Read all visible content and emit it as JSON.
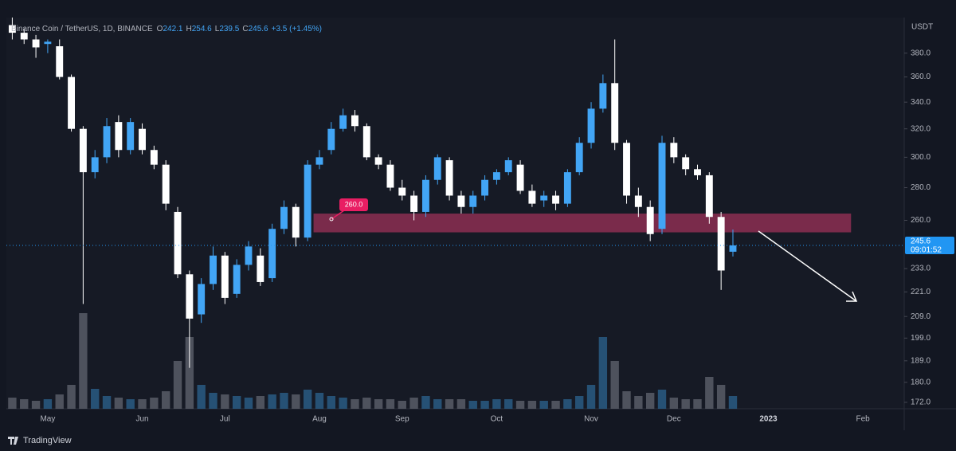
{
  "chart_data": {
    "type": "candlestick",
    "symbol": "Binance Coin / TetherUS, 1D, BINANCE",
    "ohlc_prefixes": [
      "O",
      "H",
      "L",
      "C"
    ],
    "change_label": "+3.5 (+1.45%)",
    "currency": "USDT",
    "countdown": "09:01:52",
    "annotation_label": "260.0",
    "zone": {
      "low": 253,
      "high": 264
    },
    "logo": "TradingView",
    "log_scale": true,
    "up_color": "#42a5f5",
    "down_color": "#ffffff",
    "zone_color": "#8c2f52",
    "categories": [
      null,
      null,
      null,
      "May",
      null,
      null,
      null,
      null,
      null,
      null,
      null,
      "Jun",
      null,
      null,
      null,
      null,
      null,
      null,
      "Jul",
      null,
      null,
      null,
      null,
      null,
      null,
      null,
      "Aug",
      null,
      null,
      null,
      null,
      null,
      null,
      "Sep",
      null,
      null,
      null,
      null,
      null,
      null,
      null,
      "Oct",
      null,
      null,
      null,
      null,
      null,
      null,
      null,
      "Nov",
      null,
      null,
      null,
      null,
      null,
      null,
      "Dec",
      null,
      null,
      null,
      null,
      null,
      null,
      null,
      "2023",
      null,
      null,
      null,
      null,
      null,
      null,
      null,
      "Feb",
      null,
      null,
      null
    ],
    "open": [
      405,
      398,
      392,
      388,
      386,
      360,
      320,
      290,
      300,
      325,
      305,
      320,
      305,
      295,
      265,
      230,
      210,
      225,
      240,
      220,
      235,
      240,
      228,
      255,
      268,
      250,
      295,
      305,
      320,
      330,
      322,
      300,
      295,
      280,
      275,
      265,
      285,
      298,
      275,
      268,
      275,
      285,
      290,
      295,
      278,
      272,
      275,
      270,
      290,
      310,
      335,
      355,
      310,
      275,
      268,
      255,
      310,
      300,
      292,
      288,
      262,
      242.1,
      null,
      null,
      null,
      null,
      null,
      null,
      null,
      null,
      null,
      null,
      null,
      null,
      null,
      null
    ],
    "high": [
      412,
      402,
      396,
      392,
      392,
      362,
      322,
      305,
      328,
      330,
      328,
      324,
      308,
      298,
      268,
      232,
      228,
      245,
      242,
      238,
      248,
      244,
      258,
      272,
      270,
      298,
      305,
      325,
      335,
      334,
      324,
      302,
      298,
      285,
      278,
      288,
      302,
      300,
      278,
      278,
      288,
      292,
      300,
      298,
      282,
      278,
      278,
      292,
      314,
      340,
      362,
      392,
      312,
      280,
      272,
      315,
      314,
      302,
      295,
      290,
      265,
      254.6,
      null,
      null,
      null,
      null,
      null,
      null,
      null,
      null,
      null,
      null,
      null,
      null,
      null,
      null
    ],
    "low": [
      392,
      388,
      376,
      380,
      358,
      318,
      215,
      286,
      296,
      300,
      302,
      302,
      292,
      266,
      228,
      186,
      206,
      222,
      215,
      218,
      232,
      224,
      226,
      252,
      245,
      248,
      292,
      302,
      318,
      318,
      298,
      292,
      278,
      272,
      260,
      262,
      282,
      272,
      264,
      264,
      272,
      282,
      288,
      276,
      268,
      268,
      266,
      268,
      288,
      306,
      332,
      305,
      270,
      262,
      248,
      252,
      296,
      288,
      285,
      258,
      222,
      239.5,
      null,
      null,
      null,
      null,
      null,
      null,
      null,
      null,
      null,
      null,
      null,
      null,
      null,
      null
    ],
    "close": [
      398,
      392,
      385,
      390,
      360,
      320,
      290,
      300,
      322,
      305,
      325,
      305,
      295,
      270,
      230,
      208,
      225,
      240,
      218,
      235,
      245,
      226,
      255,
      268,
      250,
      295,
      300,
      320,
      330,
      322,
      300,
      295,
      280,
      275,
      265,
      285,
      300,
      275,
      268,
      275,
      285,
      290,
      298,
      278,
      270,
      275,
      270,
      290,
      310,
      335,
      355,
      310,
      275,
      268,
      252,
      310,
      300,
      292,
      288,
      262,
      232,
      245.6,
      null,
      null,
      null,
      null,
      null,
      null,
      null,
      null,
      null,
      null,
      null,
      null,
      null,
      null
    ],
    "volume": [
      14,
      12,
      10,
      12,
      18,
      30,
      120,
      25,
      16,
      14,
      12,
      12,
      14,
      22,
      60,
      90,
      30,
      20,
      18,
      16,
      14,
      16,
      18,
      20,
      18,
      24,
      20,
      16,
      14,
      12,
      14,
      12,
      12,
      10,
      14,
      16,
      12,
      12,
      12,
      10,
      10,
      12,
      12,
      10,
      10,
      10,
      10,
      12,
      16,
      30,
      90,
      60,
      22,
      16,
      20,
      24,
      14,
      12,
      12,
      40,
      30,
      16,
      null,
      null,
      null,
      null,
      null,
      null,
      null,
      null,
      null,
      null,
      null,
      null,
      null,
      null
    ],
    "ylim": [
      169.5,
      412
    ],
    "yticks": [
      {
        "value": 172,
        "label": "172.0"
      },
      {
        "value": 180,
        "label": "180.0"
      },
      {
        "value": 189,
        "label": "189.0"
      },
      {
        "value": 199,
        "label": "199.0"
      },
      {
        "value": 209,
        "label": "209.0"
      },
      {
        "value": 221,
        "label": "221.0"
      },
      {
        "value": 233,
        "label": "233.0"
      },
      {
        "value": 260,
        "label": "260.0"
      },
      {
        "value": 280,
        "label": "280.0"
      },
      {
        "value": 300,
        "label": "300.0"
      },
      {
        "value": 320,
        "label": "320.0"
      },
      {
        "value": 340,
        "label": "340.0"
      },
      {
        "value": 360,
        "label": "360.0"
      },
      {
        "value": 380,
        "label": "380.0"
      }
    ]
  }
}
